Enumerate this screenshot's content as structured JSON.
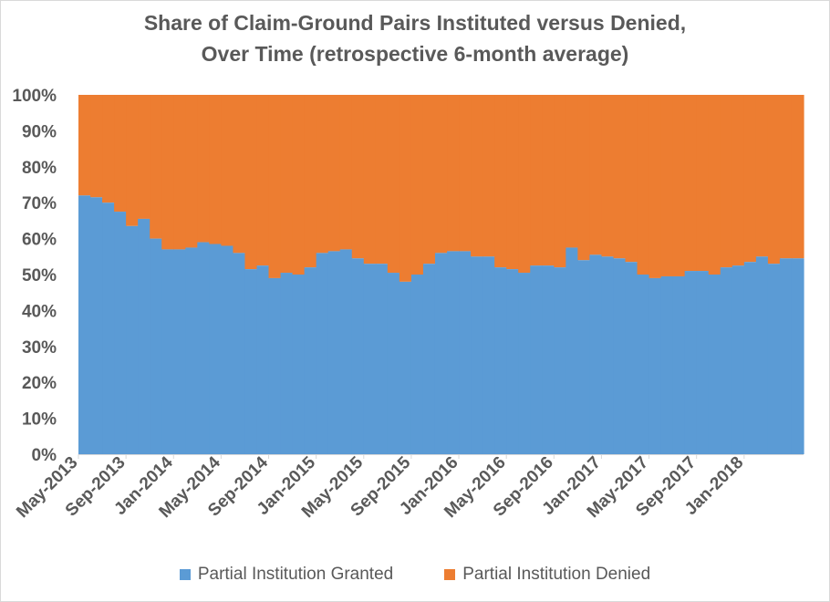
{
  "chart_data": {
    "type": "area",
    "stacked": true,
    "title_lines": [
      "Share of Claim-Ground Pairs Instituted versus Denied,",
      "Over Time (retrospective 6-month average)"
    ],
    "xlabel": "",
    "ylabel": "",
    "ylim": [
      0,
      100
    ],
    "y_ticks": [
      "0%",
      "10%",
      "20%",
      "30%",
      "40%",
      "50%",
      "60%",
      "70%",
      "80%",
      "90%",
      "100%"
    ],
    "x_tick_labels": [
      "May-2013",
      "Sep-2013",
      "Jan-2014",
      "May-2014",
      "Sep-2014",
      "Jan-2015",
      "May-2015",
      "Sep-2015",
      "Jan-2016",
      "May-2016",
      "Sep-2016",
      "Jan-2017",
      "May-2017",
      "Sep-2017",
      "Jan-2018"
    ],
    "x": [
      "May-2013",
      "Jun-2013",
      "Jul-2013",
      "Aug-2013",
      "Sep-2013",
      "Oct-2013",
      "Nov-2013",
      "Dec-2013",
      "Jan-2014",
      "Feb-2014",
      "Mar-2014",
      "Apr-2014",
      "May-2014",
      "Jun-2014",
      "Jul-2014",
      "Aug-2014",
      "Sep-2014",
      "Oct-2014",
      "Nov-2014",
      "Dec-2014",
      "Jan-2015",
      "Feb-2015",
      "Mar-2015",
      "Apr-2015",
      "May-2015",
      "Jun-2015",
      "Jul-2015",
      "Aug-2015",
      "Sep-2015",
      "Oct-2015",
      "Nov-2015",
      "Dec-2015",
      "Jan-2016",
      "Feb-2016",
      "Mar-2016",
      "Apr-2016",
      "May-2016",
      "Jun-2016",
      "Jul-2016",
      "Aug-2016",
      "Sep-2016",
      "Oct-2016",
      "Nov-2016",
      "Dec-2016",
      "Jan-2017",
      "Feb-2017",
      "Mar-2017",
      "Apr-2017",
      "May-2017",
      "Jun-2017",
      "Jul-2017",
      "Aug-2017",
      "Sep-2017",
      "Oct-2017",
      "Nov-2017",
      "Dec-2017",
      "Jan-2018",
      "Feb-2018",
      "Mar-2018",
      "Apr-2018",
      "May-2018"
    ],
    "series": [
      {
        "name": "Partial Institution Granted",
        "color": "#5b9bd5",
        "values": [
          72,
          71.5,
          70,
          67.5,
          63.5,
          65.5,
          60,
          57,
          57,
          57.5,
          59,
          58.5,
          58,
          56,
          51.5,
          52.5,
          49,
          50.5,
          50,
          52,
          56,
          56.5,
          57,
          54.5,
          53,
          53,
          50.5,
          48,
          50,
          53,
          56,
          56.5,
          56.5,
          55,
          55,
          52,
          51.5,
          50.5,
          52.5,
          52.5,
          52,
          57.5,
          54,
          55.5,
          55,
          54.5,
          53.5,
          50,
          49,
          49.5,
          49.5,
          51,
          51,
          50,
          52,
          52.5,
          53.5,
          55,
          53,
          54.5,
          54.5
        ]
      },
      {
        "name": "Partial Institution Denied",
        "color": "#ed7d31",
        "values": [
          28,
          28.5,
          30,
          32.5,
          36.5,
          34.5,
          40,
          43,
          43,
          42.5,
          41,
          41.5,
          42,
          44,
          48.5,
          47.5,
          51,
          49.5,
          50,
          48,
          44,
          43.5,
          43,
          45.5,
          47,
          47,
          49.5,
          52,
          50,
          47,
          44,
          43.5,
          43.5,
          45,
          45,
          48,
          48.5,
          49.5,
          47.5,
          47.5,
          48,
          42.5,
          46,
          44.5,
          45,
          45.5,
          46.5,
          50,
          51,
          50.5,
          50.5,
          49,
          49,
          50,
          48,
          47.5,
          46.5,
          45,
          47,
          45.5,
          45.5
        ]
      }
    ],
    "legend_position": "bottom",
    "grid": false
  }
}
